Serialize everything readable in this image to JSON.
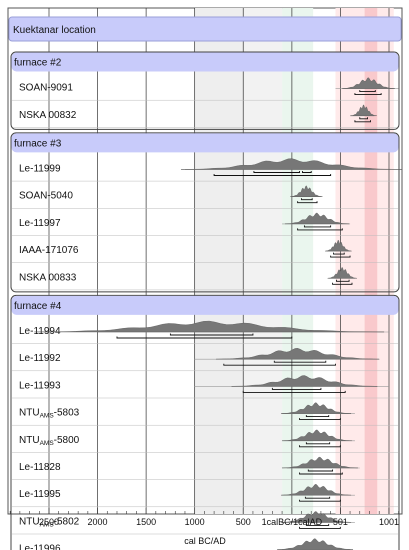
{
  "chart_data": {
    "type": "oxcal-multiplot",
    "xlabel": "cal BC/AD",
    "xlim": [
      -2900,
      1451
    ],
    "tick_values": [
      -2500,
      -2000,
      -1500,
      -1000,
      -500,
      1,
      501,
      1001
    ],
    "tick_labels": [
      "2500",
      "2000",
      "1500",
      "1000",
      "500",
      "1calBC/1calAD",
      "501",
      "1001"
    ],
    "highlight_bands": [
      {
        "from": -1000,
        "to": -500,
        "color": "#eeeeee"
      },
      {
        "from": -500,
        "to": -100,
        "color": "#f2f2f2"
      },
      {
        "from": -100,
        "to": 220,
        "color": "#eaf6ee"
      },
      {
        "from": 450,
        "to": 1050,
        "color": "#ffeaea"
      },
      {
        "from": 750,
        "to": 880,
        "color": "#f9c9cc"
      }
    ],
    "location_label": "Kuektanar location",
    "groups": [
      {
        "label": "furnace #2",
        "samples": [
          {
            "id": "SOAN-9091",
            "sub": "",
            "id_after": "",
            "center": 790,
            "spread": 90,
            "range": [
              450,
              1100
            ],
            "ranges68": [
              [
                700,
                860
              ]
            ],
            "ranges95": [
              [
                650,
                920
              ]
            ]
          },
          {
            "id": "NSKA 00832",
            "sub": "",
            "id_after": "",
            "center": 740,
            "spread": 45,
            "range": [
              600,
              850
            ],
            "ranges68": [
              [
                700,
                780
              ]
            ],
            "ranges95": [
              [
                650,
                810
              ]
            ]
          }
        ]
      },
      {
        "label": "furnace #3",
        "samples": [
          {
            "id": "Le-11999",
            "sub": "",
            "id_after": "",
            "center": 0,
            "spread": 380,
            "range": [
              -1100,
              850
            ],
            "ranges68": [
              [
                -390,
                80
              ],
              [
                110,
                200
              ]
            ],
            "ranges95": [
              [
                -800,
                400
              ]
            ]
          },
          {
            "id": "SOAN-5040",
            "sub": "",
            "id_after": "",
            "center": 150,
            "spread": 55,
            "range": [
              0,
              300
            ],
            "ranges68": [
              [
                100,
                210
              ]
            ],
            "ranges95": [
              [
                60,
                260
              ]
            ]
          },
          {
            "id": "Le-11997",
            "sub": "",
            "id_after": "",
            "center": 260,
            "spread": 110,
            "range": [
              -100,
              600
            ],
            "ranges68": [
              [
                130,
                400
              ]
            ],
            "ranges95": [
              [
                60,
                520
              ]
            ]
          },
          {
            "id": "IAAA-171076",
            "sub": "",
            "id_after": "",
            "center": 480,
            "spread": 45,
            "range": [
              360,
              600
            ],
            "ranges68": [
              [
                430,
                540
              ]
            ],
            "ranges95": [
              [
                400,
                600
              ]
            ]
          },
          {
            "id": "NSKA 00833",
            "sub": "",
            "id_after": "",
            "center": 520,
            "spread": 50,
            "range": [
              380,
              650
            ],
            "ranges68": [
              [
                460,
                590
              ]
            ],
            "ranges95": [
              [
                420,
                620
              ]
            ]
          }
        ]
      },
      {
        "label": "furnace #4",
        "samples": [
          {
            "id": "Le-11994",
            "sub": "",
            "id_after": "",
            "center": -850,
            "spread": 600,
            "range": [
              -2000,
              1000
            ],
            "ranges68": [
              [
                -1250,
                -400
              ]
            ],
            "ranges95": [
              [
                -1800,
                0
              ]
            ]
          },
          {
            "id": "Le-11992",
            "sub": "",
            "id_after": "",
            "center": 60,
            "spread": 280,
            "range": [
              -1000,
              900
            ],
            "ranges68": [
              [
                -180,
                350
              ]
            ],
            "ranges95": [
              [
                -700,
                450
              ]
            ]
          },
          {
            "id": "Le-11993",
            "sub": "",
            "id_after": "",
            "center": 130,
            "spread": 250,
            "range": [
              -1000,
              1000
            ],
            "ranges68": [
              [
                -200,
                300
              ]
            ],
            "ranges95": [
              [
                -500,
                550
              ]
            ]
          },
          {
            "id": "NTU",
            "sub": "AMS",
            "id_after": "-5803",
            "center": 250,
            "spread": 120,
            "range": [
              -100,
              650
            ],
            "ranges68": [
              [
                150,
                380
              ]
            ],
            "ranges95": [
              [
                80,
                500
              ]
            ]
          },
          {
            "id": "NTU",
            "sub": "AMS",
            "id_after": "-5800",
            "center": 260,
            "spread": 120,
            "range": [
              -100,
              650
            ],
            "ranges68": [
              [
                150,
                390
              ]
            ],
            "ranges95": [
              [
                80,
                500
              ]
            ]
          },
          {
            "id": "Le-11828",
            "sub": "",
            "id_after": "",
            "center": 290,
            "spread": 130,
            "range": [
              -50,
              700
            ],
            "ranges68": [
              [
                170,
                420
              ]
            ],
            "ranges95": [
              [
                80,
                520
              ]
            ]
          },
          {
            "id": "Le-11995",
            "sub": "",
            "id_after": "",
            "center": 250,
            "spread": 120,
            "range": [
              -100,
              650
            ],
            "ranges68": [
              [
                140,
                390
              ]
            ],
            "ranges95": [
              [
                80,
                500
              ]
            ]
          },
          {
            "id": "NTU",
            "sub": "AMS",
            "id_after": "-5802",
            "center": 250,
            "spread": 120,
            "range": [
              -100,
              650
            ],
            "ranges68": [
              [
                150,
                380
              ]
            ],
            "ranges95": [
              [
                80,
                500
              ]
            ]
          },
          {
            "id": "Le-11996",
            "sub": "",
            "id_after": "",
            "center": 240,
            "spread": 130,
            "range": [
              -100,
              600
            ],
            "ranges68": [
              [
                130,
                400
              ]
            ],
            "ranges95": [
              [
                60,
                520
              ]
            ]
          }
        ]
      }
    ]
  }
}
